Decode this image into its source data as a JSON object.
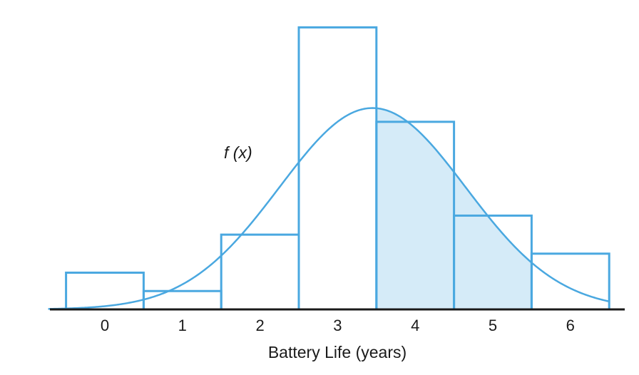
{
  "chart_data": {
    "type": "bar",
    "subtype": "histogram-with-density-curve",
    "categories": [
      "0",
      "1",
      "2",
      "3",
      "4",
      "5",
      "6"
    ],
    "values": [
      0.056,
      0.028,
      0.114,
      0.43,
      0.286,
      0.143,
      0.085
    ],
    "shaded_categories": [
      "4",
      "5"
    ],
    "ylim": [
      0,
      0.45
    ],
    "xlabel": "Battery Life (years)",
    "curve": {
      "label": "f (x)",
      "mean": 3.45,
      "sd": 1.2
    },
    "colors": {
      "bar_stroke": "#4aa8e0",
      "shade_fill": "#d5ebf8",
      "axis": "#1a1a1a"
    }
  }
}
